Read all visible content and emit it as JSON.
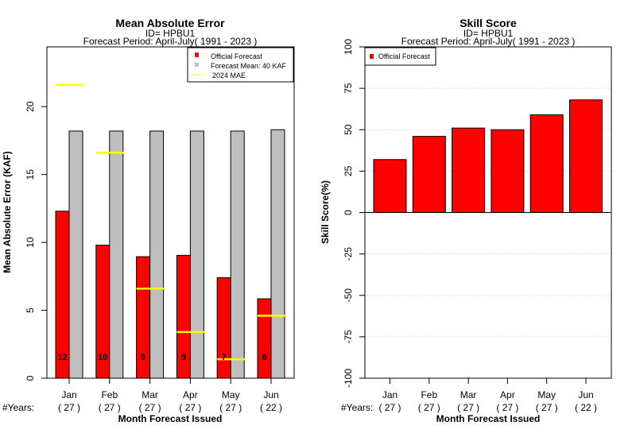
{
  "chart_data": [
    {
      "type": "bar",
      "title": "Mean Absolute Error",
      "subtitle_1": "ID= HPBU1",
      "subtitle_2": "Forecast Period: April-July( 1991 - 2023 )",
      "xlabel": "Month Forecast Issued",
      "ylabel": "Mean Absolute Error (KAF)",
      "years_label": "#Years:",
      "categories": [
        "Jan",
        "Feb",
        "Mar",
        "Apr",
        "May",
        "Jun"
      ],
      "years": [
        "( 27 )",
        "( 27 )",
        "( 27 )",
        "( 27 )",
        "( 27 )",
        "( 22 )"
      ],
      "ylim": [
        0,
        24.4
      ],
      "yticks": [
        "0",
        "5",
        "10",
        "15",
        "20"
      ],
      "series": [
        {
          "name": "Official Forecast",
          "color": "#ff0000",
          "values": [
            12.3,
            9.8,
            8.95,
            9.05,
            7.4,
            5.85
          ],
          "labels": [
            "12",
            "10",
            "9",
            "9",
            "7",
            "6"
          ]
        },
        {
          "name": "Forecast Mean: 40 KAF",
          "color": "#bebebe",
          "values": [
            18.2,
            18.2,
            18.2,
            18.2,
            18.2,
            18.3
          ]
        },
        {
          "name": "2024  MAE",
          "color": "#ffff00",
          "values": [
            21.6,
            16.6,
            6.6,
            3.4,
            1.4,
            4.6
          ]
        }
      ],
      "legend": "top-right"
    },
    {
      "type": "bar",
      "title": "Skill Score",
      "subtitle_1": "ID= HPBU1",
      "subtitle_2": "Forecast Period: April-July( 1991 - 2023 )",
      "xlabel": "Month Forecast Issued",
      "ylabel": "Skill Score(%)",
      "years_label": "#Years:",
      "categories": [
        "Jan",
        "Feb",
        "Mar",
        "Apr",
        "May",
        "Jun"
      ],
      "years": [
        "( 27 )",
        "( 27 )",
        "( 27 )",
        "( 27 )",
        "( 27 )",
        "( 22 )"
      ],
      "ylim": [
        -100,
        100
      ],
      "yticks": [
        "-100",
        "-75",
        "-50",
        "-25",
        "0",
        "25",
        "50",
        "75",
        "100"
      ],
      "grid": true,
      "series": [
        {
          "name": "Official Forecast",
          "color": "#ff0000",
          "values": [
            32,
            46,
            51,
            50,
            59,
            68
          ]
        }
      ],
      "legend": "top-left"
    }
  ]
}
